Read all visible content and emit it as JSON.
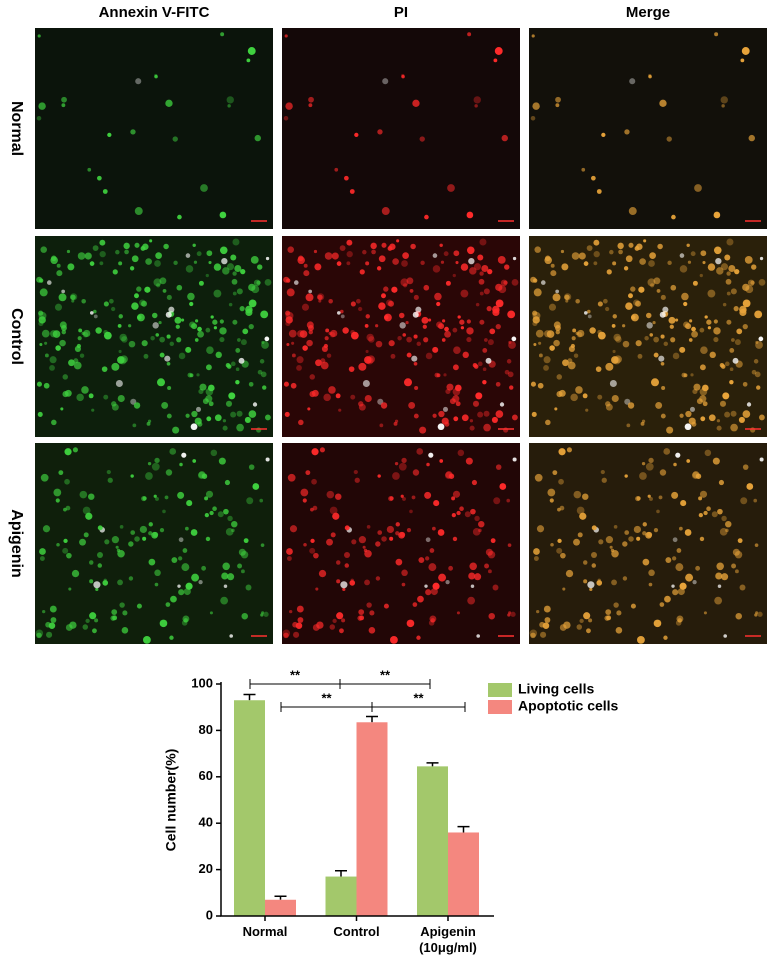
{
  "figure": {
    "column_labels": [
      "Annexin V-FITC",
      "PI",
      "Merge"
    ],
    "row_labels": [
      "Normal",
      "Control",
      "Apigenin"
    ]
  },
  "chart_data": {
    "type": "bar",
    "categories": [
      "Normal",
      "Control",
      "Apigenin\n(10μg/ml)"
    ],
    "y_label": "Cell number(%)",
    "series": [
      {
        "name": "Living cells",
        "color": "#a3c86b",
        "values": [
          93,
          17,
          64.5
        ],
        "errors": [
          2.5,
          2.5,
          1.5
        ]
      },
      {
        "name": "Apoptotic cells",
        "color": "#f4877f",
        "values": [
          7,
          83.5,
          36
        ],
        "errors": [
          1.5,
          2.5,
          2.5
        ]
      }
    ],
    "ylim": [
      0,
      100
    ],
    "yticks": [
      0,
      20,
      40,
      60,
      80,
      100
    ],
    "legend": "upper right",
    "annotations": [
      "**",
      "**",
      "**",
      "**"
    ]
  }
}
